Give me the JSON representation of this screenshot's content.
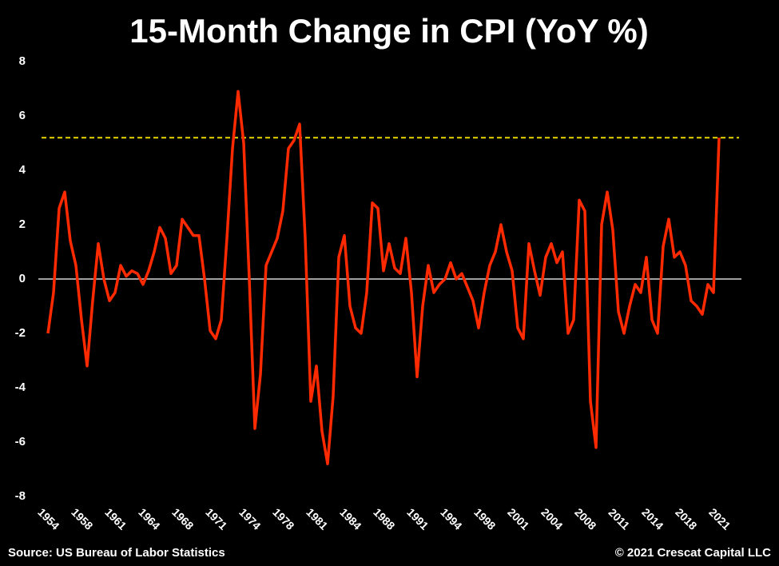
{
  "chart_data": {
    "type": "line",
    "title": "15-Month Change in CPI (YoY %)",
    "source": "Source: US Bureau of Labor Statistics",
    "credit": "© 2021 Crescat Capital LLC",
    "categories": [
      "1954",
      null,
      null,
      null,
      null,
      null,
      "1958",
      null,
      null,
      null,
      null,
      null,
      "1961",
      null,
      null,
      null,
      null,
      null,
      "1964",
      null,
      null,
      null,
      null,
      null,
      "1968",
      null,
      null,
      null,
      null,
      null,
      "1971",
      null,
      null,
      null,
      null,
      null,
      "1974",
      null,
      null,
      null,
      null,
      null,
      "1978",
      null,
      null,
      null,
      null,
      null,
      "1981",
      null,
      null,
      null,
      null,
      null,
      "1984",
      null,
      null,
      null,
      null,
      null,
      "1988",
      null,
      null,
      null,
      null,
      null,
      "1991",
      null,
      null,
      null,
      null,
      null,
      "1994",
      null,
      null,
      null,
      null,
      null,
      "1998",
      null,
      null,
      null,
      null,
      null,
      "2001",
      null,
      null,
      null,
      null,
      null,
      "2004",
      null,
      null,
      null,
      null,
      null,
      "2008",
      null,
      null,
      null,
      null,
      null,
      "2011",
      null,
      null,
      null,
      null,
      null,
      "2014",
      null,
      null,
      null,
      null,
      null,
      "2018",
      null,
      null,
      null,
      null,
      null,
      "2021"
    ],
    "series": [
      {
        "color": "#ff2a00",
        "values": [
          -2,
          -0.5,
          2.6,
          3.2,
          1.4,
          0.5,
          -1.5,
          -3.2,
          -0.8,
          1.3,
          0,
          -0.8,
          -0.5,
          0.5,
          0.1,
          0.3,
          0.2,
          -0.2,
          0.3,
          1.0,
          1.9,
          1.5,
          0.2,
          0.5,
          2.2,
          1.9,
          1.6,
          1.6,
          0,
          -1.9,
          -2.2,
          -1.5,
          1.5,
          4.8,
          6.9,
          5.0,
          0,
          -5.5,
          -3.5,
          0.5,
          1.0,
          1.5,
          2.5,
          4.8,
          5.1,
          5.7,
          1.5,
          -4.5,
          -3.2,
          -5.6,
          -6.8,
          -4.3,
          0.8,
          1.6,
          -1.0,
          -1.8,
          -2.0,
          -0.5,
          2.8,
          2.6,
          0.3,
          1.3,
          0.4,
          0.2,
          1.5,
          -0.5,
          -3.6,
          -1.0,
          0.5,
          -0.5,
          -0.2,
          0,
          0.6,
          0,
          0.2,
          -0.3,
          -0.8,
          -1.8,
          -0.5,
          0.5,
          1.0,
          2.0,
          1.0,
          0.3,
          -1.8,
          -2.2,
          1.3,
          0.3,
          -0.6,
          0.8,
          1.3,
          0.6,
          1.0,
          -2.0,
          -1.5,
          2.9,
          2.5,
          -4.5,
          -6.2,
          2.0,
          3.2,
          1.8,
          -1.2,
          -2.0,
          -1.0,
          -0.2,
          -0.5,
          0.8,
          -1.5,
          -2.0,
          1.2,
          2.2,
          0.8,
          1.0,
          0.5,
          -0.8,
          -1.0,
          -1.3,
          -0.2,
          -0.5,
          5.2
        ]
      }
    ],
    "hline": {
      "value": 5.2,
      "color": "#e8d800"
    },
    "ylim": [
      -8,
      8
    ],
    "yticks": [
      -8,
      -6,
      -4,
      -2,
      0,
      2,
      4,
      6,
      8
    ]
  }
}
